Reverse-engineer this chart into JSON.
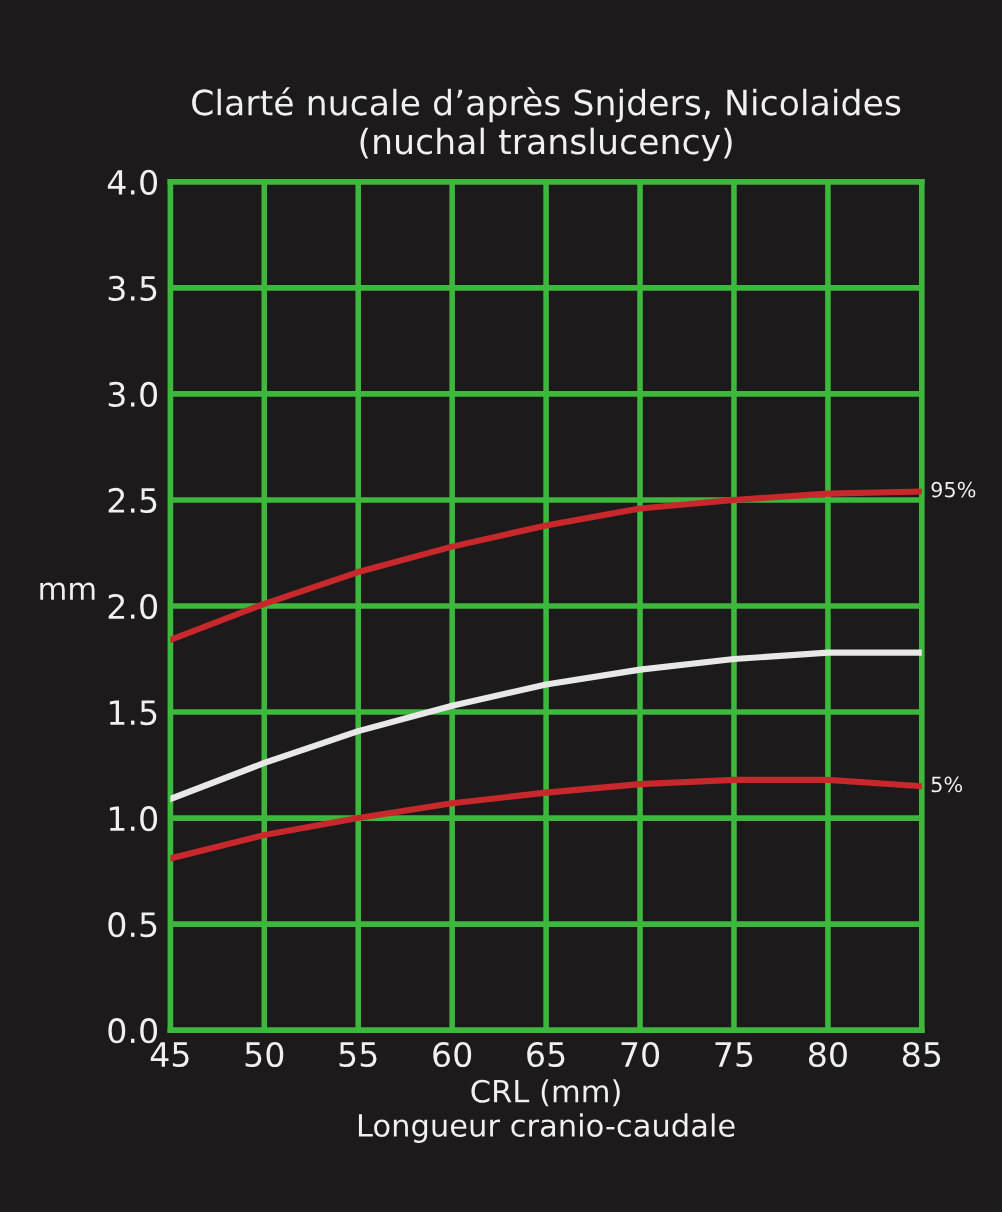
{
  "chart_data": {
    "type": "line",
    "title": "Clarté nucale d’après Snjders, Nicolaides\n(nuchal translucency)",
    "xlabel": "CRL (mm)\nLongueur cranio-caudale",
    "ylabel": "mm",
    "x": [
      45,
      50,
      55,
      60,
      65,
      70,
      75,
      80,
      85
    ],
    "series": [
      {
        "name": "95%",
        "color": "#c8282c",
        "values": [
          1.84,
          2.01,
          2.16,
          2.28,
          2.38,
          2.46,
          2.5,
          2.53,
          2.54
        ]
      },
      {
        "color": "#e8e8e8",
        "values": [
          1.09,
          1.26,
          1.41,
          1.53,
          1.63,
          1.7,
          1.75,
          1.78,
          1.78
        ]
      },
      {
        "name": "5%",
        "color": "#c8282c",
        "values": [
          0.81,
          0.92,
          1.0,
          1.07,
          1.12,
          1.16,
          1.18,
          1.18,
          1.15
        ]
      }
    ],
    "xlim": [
      45,
      85
    ],
    "xticks": [
      45,
      50,
      55,
      60,
      65,
      70,
      75,
      80,
      85
    ],
    "ylim": [
      0,
      4
    ],
    "yticks": [
      {
        "value": 0,
        "label": "0.0"
      },
      0.5,
      {
        "value": 1,
        "label": "1.0"
      },
      1.5,
      {
        "value": 2,
        "label": "2.0"
      },
      2.5,
      {
        "value": 3,
        "label": "3.0"
      },
      3.5,
      {
        "value": 4,
        "label": "4.0"
      }
    ],
    "grid": true,
    "marker": "none",
    "line_style": "solid",
    "legend": false
  }
}
